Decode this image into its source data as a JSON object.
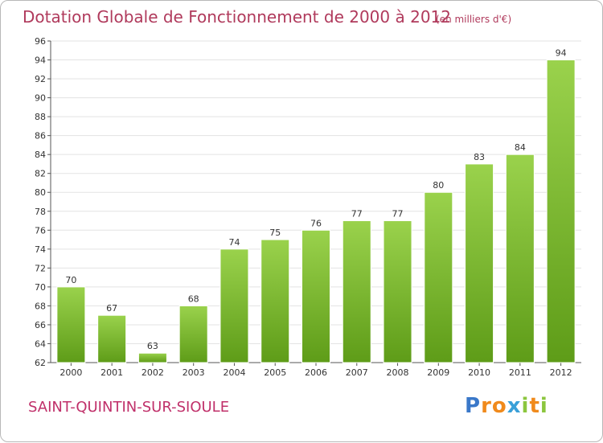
{
  "title": "Dotation Globale de Fonctionnement de 2000 à 2012",
  "subtitle": "(en milliers d'€)",
  "commune": "SAINT-QUINTIN-SUR-SIOULE",
  "logo": {
    "letters": [
      "P",
      "r",
      "o",
      "x",
      "i",
      "t",
      "i"
    ],
    "colors": [
      "#3a78c9",
      "#f08a1c",
      "#f08a1c",
      "#3aa0d8",
      "#8cc63e",
      "#f08a1c",
      "#8cc63e"
    ]
  },
  "colors": {
    "bar_top": "#9ad24c",
    "bar_bottom": "#5e9c18",
    "bar_stroke": "#ffffff",
    "title": "#b03a5c",
    "grid": "#e3e3e3",
    "axis": "#555555"
  },
  "chart_data": {
    "type": "bar",
    "categories": [
      "2000",
      "2001",
      "2002",
      "2003",
      "2004",
      "2005",
      "2006",
      "2007",
      "2008",
      "2009",
      "2010",
      "2011",
      "2012"
    ],
    "values": [
      70,
      67,
      63,
      68,
      74,
      75,
      76,
      77,
      77,
      80,
      83,
      84,
      94
    ],
    "title": "Dotation Globale de Fonctionnement de 2000 à 2012",
    "subtitle": "(en milliers d'€)",
    "ylim": [
      62,
      96
    ],
    "yticks": [
      62,
      64,
      66,
      68,
      70,
      72,
      74,
      76,
      78,
      80,
      82,
      84,
      86,
      88,
      90,
      92,
      94,
      96
    ],
    "grid": true
  }
}
